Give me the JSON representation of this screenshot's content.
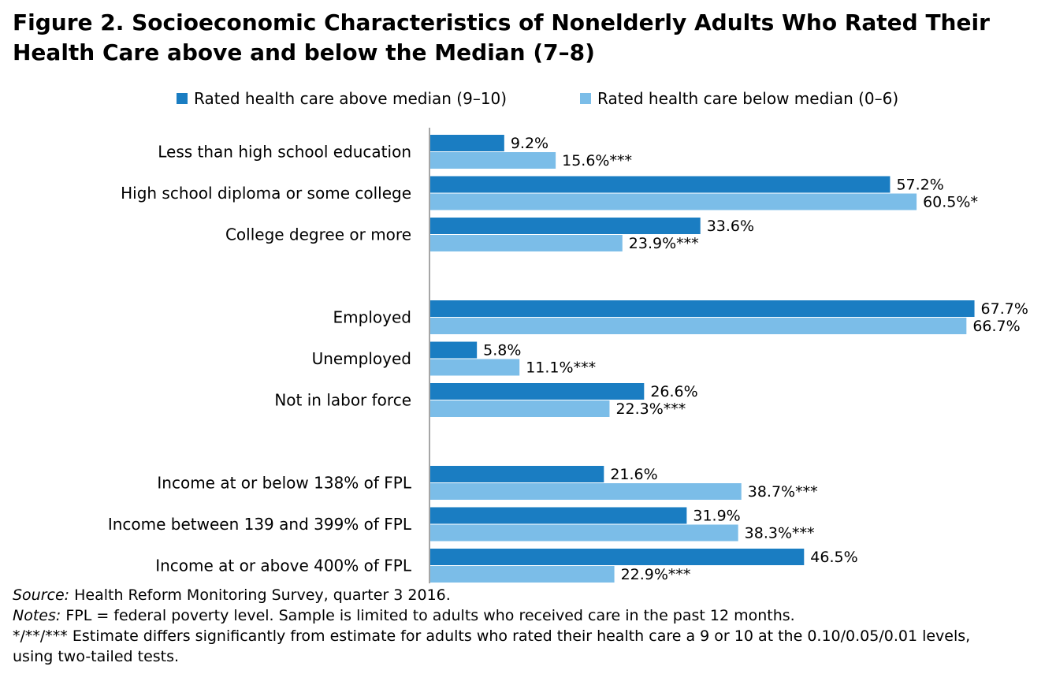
{
  "title": "Figure 2. Socioeconomic Characteristics of Nonelderly Adults Who Rated Their Health Care above and below the Median (7–8)",
  "legend": {
    "above": "Rated health care above median (9–10)",
    "below": "Rated health care below median (0–6)"
  },
  "colors": {
    "above": "#1a7dc2",
    "below": "#7bbde8",
    "axis": "#888888"
  },
  "chart_data": {
    "type": "bar",
    "orientation": "horizontal",
    "xlim": [
      0,
      70
    ],
    "categories": [
      "Less than high school education",
      "High school diploma or some college",
      "College degree or more",
      "Employed",
      "Unemployed",
      "Not in labor force",
      "Income at or below 138% of FPL",
      "Income between 139 and 399% of FPL",
      "Income at or above 400% of FPL"
    ],
    "groups": [
      [
        0,
        1,
        2
      ],
      [
        3,
        4,
        5
      ],
      [
        6,
        7,
        8
      ]
    ],
    "series": [
      {
        "name": "Rated health care above median (9–10)",
        "values": [
          9.2,
          57.2,
          33.6,
          67.7,
          5.8,
          26.6,
          21.6,
          31.9,
          46.5
        ],
        "labels": [
          "9.2%",
          "57.2%",
          "33.6%",
          "67.7%",
          "5.8%",
          "26.6%",
          "21.6%",
          "31.9%",
          "46.5%"
        ]
      },
      {
        "name": "Rated health care below median (0–6)",
        "values": [
          15.6,
          60.5,
          23.9,
          66.7,
          11.1,
          22.3,
          38.7,
          38.3,
          22.9
        ],
        "labels": [
          "15.6%***",
          "60.5%*",
          "23.9%***",
          "66.7%",
          "11.1%***",
          "22.3%***",
          "38.7%***",
          "38.3%***",
          "22.9%***"
        ]
      }
    ]
  },
  "notes": {
    "source_label": "Source:",
    "source_text": " Health Reform Monitoring Survey, quarter 3 2016.",
    "notes_label": "Notes:",
    "notes_text": " FPL = federal poverty level. Sample is limited to adults who received care in the past 12 months.",
    "significance_line1": "*/**/*** Estimate differs significantly from estimate for adults who rated their health care a 9 or 10 at the 0.10/0.05/0.01 levels,",
    "significance_line2": "using two-tailed tests."
  }
}
